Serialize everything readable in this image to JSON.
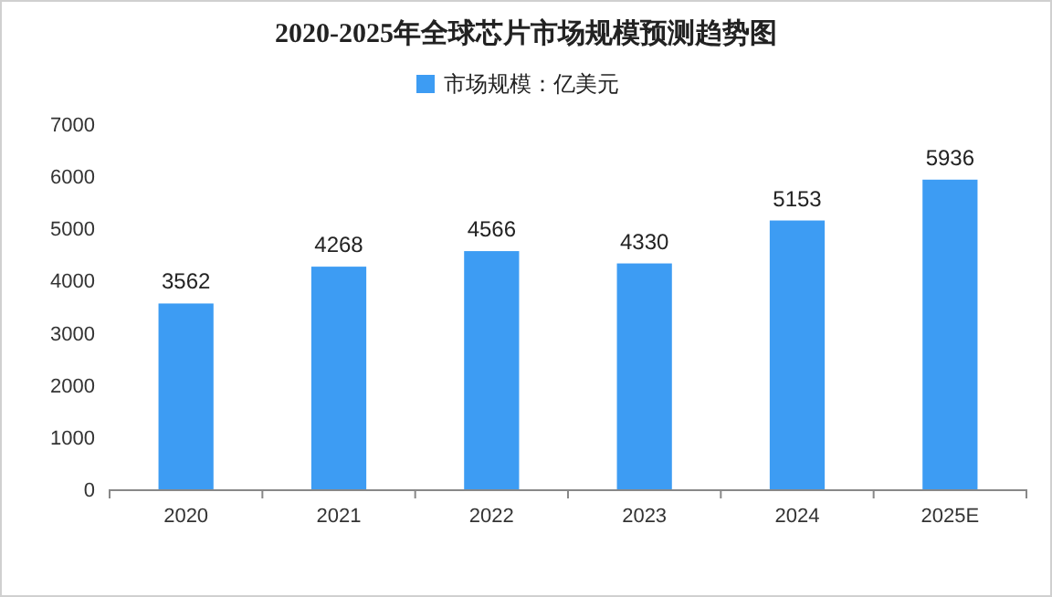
{
  "chart_data": {
    "type": "bar",
    "title": "2020-2025年全球芯片市场规模预测趋势图",
    "categories": [
      "2020",
      "2021",
      "2022",
      "2023",
      "2024",
      "2025E"
    ],
    "series": [
      {
        "name": "市场规模：亿美元",
        "color": "#3d9cf3",
        "values": [
          3562,
          4268,
          4566,
          4330,
          5153,
          5936
        ]
      }
    ],
    "ylim": [
      0,
      7000
    ],
    "yticks": [
      0,
      1000,
      2000,
      3000,
      4000,
      5000,
      6000,
      7000
    ],
    "data_labels": true,
    "legend": "top",
    "grid": false
  }
}
